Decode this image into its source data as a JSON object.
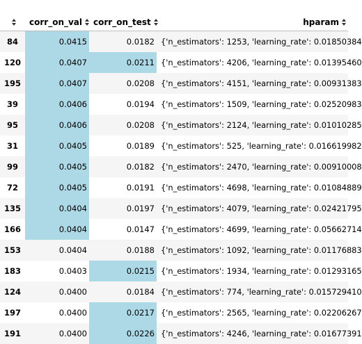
{
  "header": {
    "index_sort_icon": "sort-icon",
    "col_val": "corr_on_val",
    "col_test": "corr_on_test",
    "col_hparam": "hparam"
  },
  "highlight_color": "#add8e6",
  "rows": [
    {
      "idx": "84",
      "val": "0.0415",
      "test": "0.0182",
      "hparam": "{'n_estimators': 1253, 'learning_rate': 0.01850384",
      "val_hl": true,
      "test_hl": false
    },
    {
      "idx": "120",
      "val": "0.0407",
      "test": "0.0211",
      "hparam": "{'n_estimators': 4206, 'learning_rate': 0.01395460",
      "val_hl": true,
      "test_hl": true
    },
    {
      "idx": "195",
      "val": "0.0407",
      "test": "0.0208",
      "hparam": "{'n_estimators': 4151, 'learning_rate': 0.00931383",
      "val_hl": true,
      "test_hl": false
    },
    {
      "idx": "39",
      "val": "0.0406",
      "test": "0.0194",
      "hparam": "{'n_estimators': 1509, 'learning_rate': 0.02520983",
      "val_hl": true,
      "test_hl": false
    },
    {
      "idx": "95",
      "val": "0.0406",
      "test": "0.0208",
      "hparam": "{'n_estimators': 2124, 'learning_rate': 0.01010285",
      "val_hl": true,
      "test_hl": false
    },
    {
      "idx": "31",
      "val": "0.0405",
      "test": "0.0189",
      "hparam": "{'n_estimators': 525, 'learning_rate': 0.016619982",
      "val_hl": true,
      "test_hl": false
    },
    {
      "idx": "99",
      "val": "0.0405",
      "test": "0.0182",
      "hparam": "{'n_estimators': 2470, 'learning_rate': 0.00910008",
      "val_hl": true,
      "test_hl": false
    },
    {
      "idx": "72",
      "val": "0.0405",
      "test": "0.0191",
      "hparam": "{'n_estimators': 4698, 'learning_rate': 0.01084889",
      "val_hl": true,
      "test_hl": false
    },
    {
      "idx": "135",
      "val": "0.0404",
      "test": "0.0197",
      "hparam": "{'n_estimators': 4079, 'learning_rate': 0.02421795",
      "val_hl": true,
      "test_hl": false
    },
    {
      "idx": "166",
      "val": "0.0404",
      "test": "0.0147",
      "hparam": "{'n_estimators': 4699, 'learning_rate': 0.05662714",
      "val_hl": true,
      "test_hl": false
    },
    {
      "idx": "153",
      "val": "0.0404",
      "test": "0.0188",
      "hparam": "{'n_estimators': 1092, 'learning_rate': 0.01176883",
      "val_hl": false,
      "test_hl": false
    },
    {
      "idx": "183",
      "val": "0.0403",
      "test": "0.0215",
      "hparam": "{'n_estimators': 1934, 'learning_rate': 0.01293165",
      "val_hl": false,
      "test_hl": true
    },
    {
      "idx": "124",
      "val": "0.0400",
      "test": "0.0184",
      "hparam": "{'n_estimators': 774, 'learning_rate': 0.015729410",
      "val_hl": false,
      "test_hl": false
    },
    {
      "idx": "197",
      "val": "0.0400",
      "test": "0.0217",
      "hparam": "{'n_estimators': 2565, 'learning_rate': 0.02206267",
      "val_hl": false,
      "test_hl": true
    },
    {
      "idx": "191",
      "val": "0.0400",
      "test": "0.0226",
      "hparam": "{'n_estimators': 4246, 'learning_rate': 0.01677391",
      "val_hl": false,
      "test_hl": true
    }
  ]
}
